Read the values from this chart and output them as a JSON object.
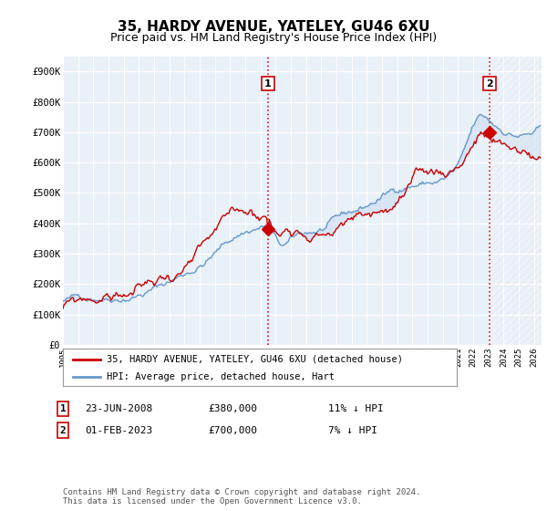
{
  "title": "35, HARDY AVENUE, YATELEY, GU46 6XU",
  "subtitle": "Price paid vs. HM Land Registry's House Price Index (HPI)",
  "ylim": [
    0,
    950000
  ],
  "yticks": [
    0,
    100000,
    200000,
    300000,
    400000,
    500000,
    600000,
    700000,
    800000,
    900000
  ],
  "ytick_labels": [
    "£0",
    "£100K",
    "£200K",
    "£300K",
    "£400K",
    "£500K",
    "£600K",
    "£700K",
    "£800K",
    "£900K"
  ],
  "hpi_color": "#6699cc",
  "price_color": "#cc0000",
  "marker1_price": 380000,
  "marker2_price": 700000,
  "vline_color": "#cc0000",
  "bg_color": "#e8f0f8",
  "fill_color": "#ccddf0",
  "grid_color": "#ffffff",
  "legend_label1": "35, HARDY AVENUE, YATELEY, GU46 6XU (detached house)",
  "legend_label2": "HPI: Average price, detached house, Hart",
  "table_row1": [
    "1",
    "23-JUN-2008",
    "£380,000",
    "11% ↓ HPI"
  ],
  "table_row2": [
    "2",
    "01-FEB-2023",
    "£700,000",
    "7% ↓ HPI"
  ],
  "footer": "Contains HM Land Registry data © Crown copyright and database right 2024.\nThis data is licensed under the Open Government Licence v3.0.",
  "title_fontsize": 11,
  "subtitle_fontsize": 9,
  "sale1_year": 2008.46,
  "sale2_year": 2023.08
}
